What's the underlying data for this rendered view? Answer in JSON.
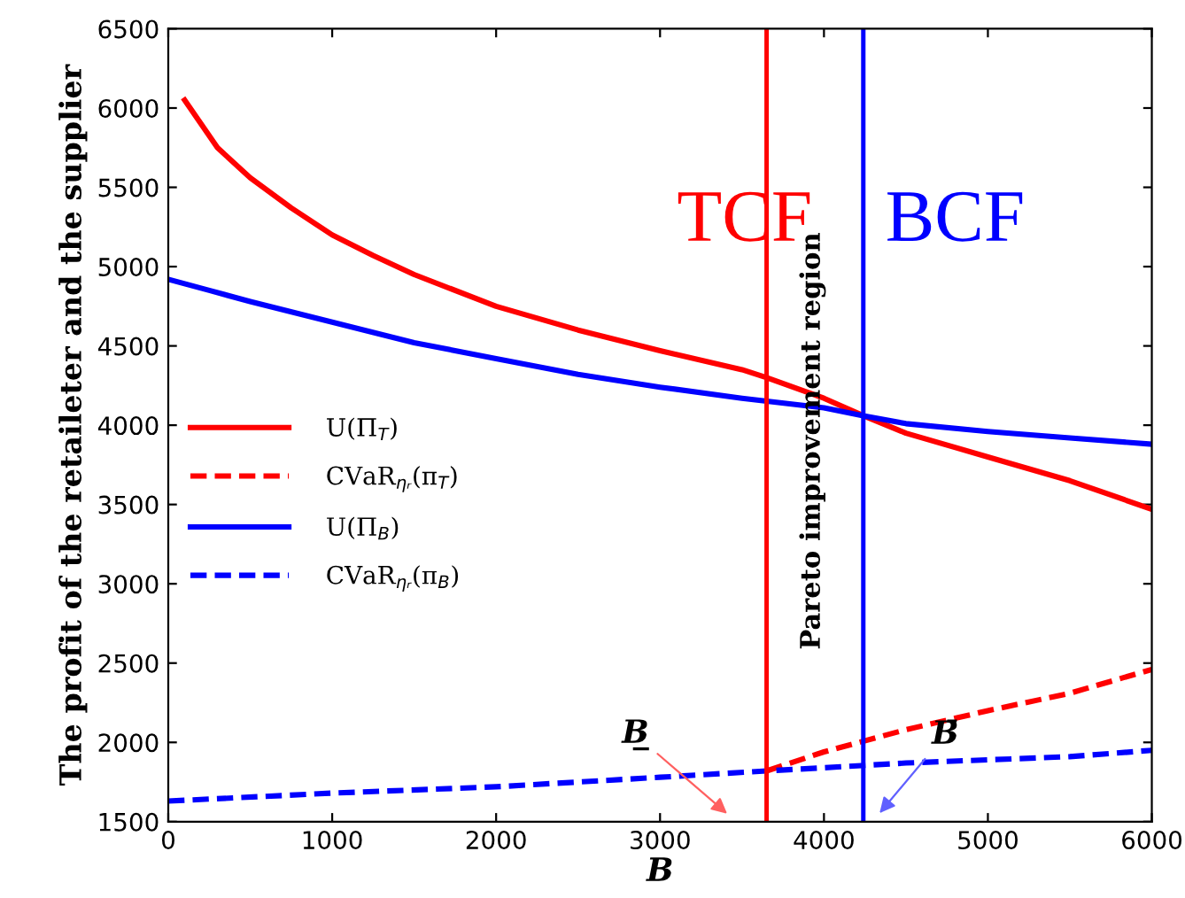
{
  "chart_data": {
    "type": "line",
    "xlabel": "B",
    "ylabel": "The profit of the retaileter and the supplier",
    "xlim": [
      0,
      6000
    ],
    "xticks": [
      0,
      1000,
      2000,
      3000,
      4000,
      5000,
      6000
    ],
    "ylim": [
      1500,
      6500
    ],
    "yticks": [
      1500,
      2000,
      2500,
      3000,
      3500,
      4000,
      4500,
      5000,
      5500,
      6000,
      6500
    ],
    "grid": false,
    "legend": "left",
    "marker": "none",
    "series": [
      {
        "name": "U(Π$_{T}$)",
        "color": "#ff0000",
        "line_style": "solid",
        "x": [
          100,
          300,
          500,
          750,
          1000,
          1250,
          1500,
          2000,
          2500,
          3000,
          3500,
          3650,
          4000,
          4240,
          4500,
          5000,
          5500,
          6000
        ],
        "values": [
          6050,
          5750,
          5560,
          5370,
          5200,
          5070,
          4950,
          4750,
          4600,
          4470,
          4350,
          4300,
          4170,
          4060,
          3950,
          3800,
          3650,
          3470
        ]
      },
      {
        "name": "CVaR$_{ηᵣ}$(π$_{T}$)",
        "color": "#ff0000",
        "line_style": "dashed",
        "x": [
          3650,
          4000,
          4500,
          5000,
          5500,
          6000
        ],
        "values": [
          1820,
          1940,
          2080,
          2200,
          2310,
          2460
        ]
      },
      {
        "name": "U(Π$_{B}$)",
        "color": "#0000ff",
        "line_style": "solid",
        "x": [
          0,
          250,
          500,
          1000,
          1500,
          2000,
          2500,
          3000,
          3500,
          4000,
          4240,
          4500,
          5000,
          5500,
          6000
        ],
        "values": [
          4920,
          4850,
          4780,
          4650,
          4520,
          4420,
          4320,
          4240,
          4170,
          4110,
          4060,
          4010,
          3960,
          3920,
          3880
        ]
      },
      {
        "name": "CVaR$_{ηᵣ}$(π$_{B}$)",
        "color": "#0000ff",
        "line_style": "dashed",
        "x": [
          0,
          1000,
          2000,
          3000,
          3650,
          4000,
          4500,
          5000,
          5500,
          6000
        ],
        "values": [
          1630,
          1680,
          1720,
          1780,
          1820,
          1840,
          1870,
          1890,
          1910,
          1950
        ]
      }
    ],
    "ref_lines": [
      {
        "axis": "x",
        "value": 3650,
        "color": "#ff0000"
      },
      {
        "axis": "x",
        "value": 4240,
        "color": "#0000ff"
      }
    ],
    "annotations": [
      "TCF",
      "BCF",
      "Pareto improvement region",
      "B̲",
      "B̄"
    ]
  }
}
